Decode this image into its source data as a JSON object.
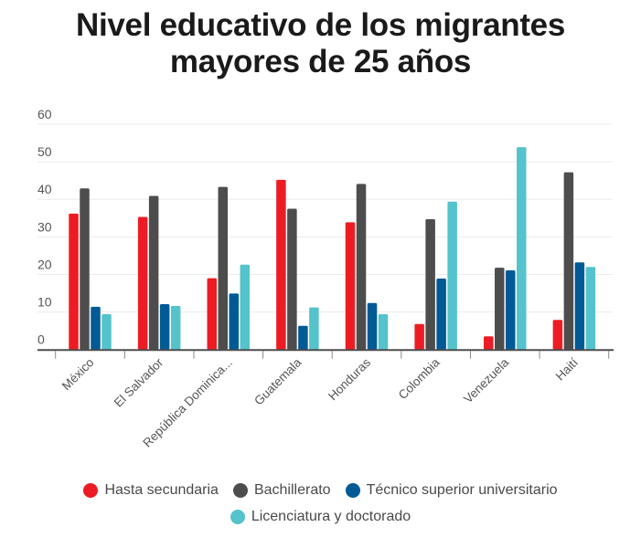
{
  "chart_data": {
    "type": "bar",
    "title": "Nivel educativo de los migrantes mayores de 25 años",
    "title_lines": [
      "Nivel educativo de los migrantes",
      "mayores de 25 años"
    ],
    "xlabel": "",
    "ylabel": "",
    "ylim": [
      0,
      60
    ],
    "yticks": [
      0,
      10,
      20,
      30,
      40,
      50,
      60
    ],
    "grid": true,
    "legend_position": "bottom",
    "categories": [
      "México",
      "El Salvador",
      "República Dominica...",
      "Guatemala",
      "Honduras",
      "Colombia",
      "Venezuela",
      "Haití"
    ],
    "series": [
      {
        "name": "Hasta secundaria",
        "color": "#ed1c24",
        "values": [
          36.2,
          35.3,
          19.0,
          45.2,
          33.9,
          6.8,
          3.5,
          7.9
        ]
      },
      {
        "name": "Bachillerato",
        "color": "#4d4d4d",
        "values": [
          42.9,
          40.9,
          43.3,
          37.5,
          44.1,
          34.7,
          21.8,
          47.2
        ]
      },
      {
        "name": "Técnico superior universitario",
        "color": "#005a96",
        "values": [
          11.4,
          12.1,
          14.9,
          6.3,
          12.4,
          18.9,
          21.1,
          23.2
        ]
      },
      {
        "name": "Licenciatura y doctorado",
        "color": "#55c3cb",
        "values": [
          9.4,
          11.6,
          22.6,
          11.2,
          9.4,
          39.4,
          53.9,
          22.0
        ]
      }
    ]
  }
}
